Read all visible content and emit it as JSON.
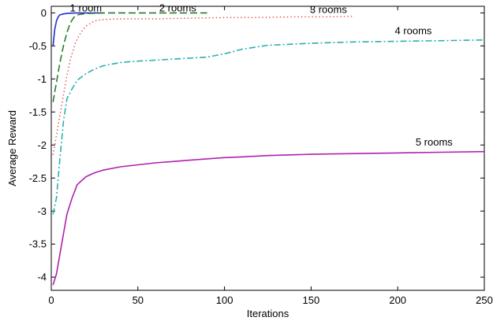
{
  "chart_data": {
    "type": "line",
    "xlabel": "Iterations",
    "ylabel": "Average Reward",
    "xlim": [
      0,
      250
    ],
    "ylim": [
      -4.2,
      0.1
    ],
    "x_ticks": [
      0,
      50,
      100,
      150,
      200,
      250
    ],
    "y_ticks": [
      0,
      -0.5,
      -1,
      -1.5,
      -2,
      -2.5,
      -3,
      -3.5,
      -4
    ],
    "x_tick_labels": [
      "0",
      "50",
      "100",
      "150",
      "200",
      "250"
    ],
    "y_tick_labels": [
      "0",
      "-0.5",
      "-1",
      "-1.5",
      "-2",
      "-2.5",
      "-3",
      "-3.5",
      "-4"
    ],
    "grid": false,
    "legend": "none",
    "series": [
      {
        "name": "1 room",
        "color": "#1f2ecc",
        "dash": "solid",
        "x": [
          1,
          2,
          3,
          4,
          5,
          7,
          10,
          15,
          20,
          25,
          30
        ],
        "y": [
          -0.5,
          -0.25,
          -0.12,
          -0.06,
          -0.03,
          -0.015,
          -0.005,
          0,
          0,
          0,
          0
        ]
      },
      {
        "name": "2 rooms",
        "color": "#2b7a2b",
        "dash": "dashed",
        "x": [
          1,
          2,
          3,
          5,
          7,
          9,
          11,
          13,
          15,
          20,
          30,
          50,
          70,
          90
        ],
        "y": [
          -1.35,
          -1.2,
          -1.05,
          -0.75,
          -0.5,
          -0.3,
          -0.15,
          -0.07,
          -0.03,
          -0.01,
          0,
          0,
          0,
          0
        ]
      },
      {
        "name": "3 rooms",
        "color": "#e05050",
        "dash": "dotted",
        "x": [
          1,
          3,
          5,
          7,
          9,
          11,
          14,
          17,
          20,
          25,
          30,
          40,
          60,
          80,
          100,
          120,
          140,
          160,
          175
        ],
        "y": [
          -2.15,
          -1.85,
          -1.55,
          -1.25,
          -0.95,
          -0.7,
          -0.45,
          -0.3,
          -0.2,
          -0.12,
          -0.1,
          -0.09,
          -0.09,
          -0.08,
          -0.07,
          -0.07,
          -0.06,
          -0.06,
          -0.05
        ]
      },
      {
        "name": "4 rooms",
        "color": "#2ab0b0",
        "dash": "dashdot",
        "x": [
          1,
          3,
          5,
          7,
          9,
          12,
          15,
          20,
          25,
          30,
          40,
          50,
          70,
          90,
          100,
          110,
          125,
          150,
          175,
          200,
          225,
          250
        ],
        "y": [
          -3.05,
          -2.8,
          -2.2,
          -1.65,
          -1.3,
          -1.15,
          -1.02,
          -0.92,
          -0.85,
          -0.8,
          -0.75,
          -0.73,
          -0.7,
          -0.67,
          -0.62,
          -0.55,
          -0.49,
          -0.46,
          -0.44,
          -0.43,
          -0.42,
          -0.41
        ]
      },
      {
        "name": "5 rooms",
        "color": "#b020b0",
        "dash": "solid",
        "x": [
          1,
          3,
          5,
          7,
          9,
          12,
          15,
          20,
          25,
          30,
          40,
          50,
          60,
          70,
          80,
          90,
          100,
          110,
          125,
          150,
          175,
          200,
          225,
          250
        ],
        "y": [
          -4.12,
          -3.95,
          -3.65,
          -3.35,
          -3.05,
          -2.8,
          -2.6,
          -2.48,
          -2.42,
          -2.38,
          -2.33,
          -2.3,
          -2.27,
          -2.25,
          -2.23,
          -2.21,
          -2.19,
          -2.18,
          -2.16,
          -2.14,
          -2.13,
          -2.12,
          -2.11,
          -2.1
        ]
      }
    ],
    "annotations": [
      {
        "text": "1 room",
        "x": 20,
        "y": 0.02
      },
      {
        "text": "2 rooms",
        "x": 73,
        "y": 0.02
      },
      {
        "text": "3 rooms",
        "x": 160,
        "y": 0
      },
      {
        "text": "4 rooms",
        "x": 209,
        "y": -0.32
      },
      {
        "text": "5 rooms",
        "x": 221,
        "y": -2.01
      }
    ]
  }
}
